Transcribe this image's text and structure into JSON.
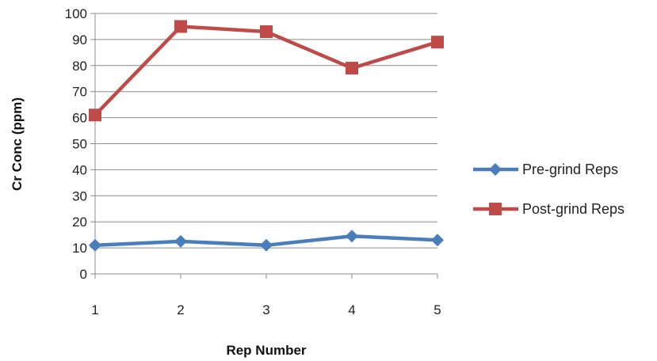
{
  "chart_data": {
    "type": "line",
    "x": [
      1,
      2,
      3,
      4,
      5
    ],
    "xlabel": "Rep Number",
    "ylabel": "Cr Conc (ppm)",
    "ylim": [
      0,
      100
    ],
    "yticks": [
      0,
      10,
      20,
      30,
      40,
      50,
      60,
      70,
      80,
      90,
      100
    ],
    "grid": "horizontal",
    "legend_position": "right",
    "series": [
      {
        "name": "Pre-grind Reps",
        "values": [
          11,
          12.5,
          11,
          14.5,
          13
        ],
        "color": "#4a7ebb",
        "marker": "diamond"
      },
      {
        "name": "Post-grind Reps",
        "values": [
          61,
          95,
          93,
          79,
          89
        ],
        "color": "#be4b48",
        "marker": "square"
      }
    ]
  }
}
